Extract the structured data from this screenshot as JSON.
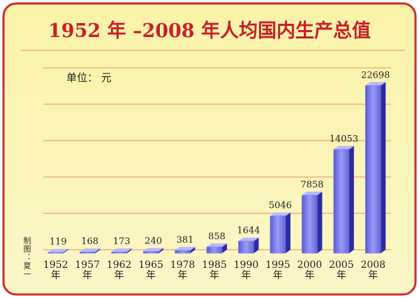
{
  "chart_data": {
    "type": "bar3d",
    "title": "1952 年 –2008 年人均国内生产总值",
    "unit_label": "单位： 元",
    "credit": "制图：夏一",
    "categories": [
      "1952\n年",
      "1957\n年",
      "1962\n年",
      "1965\n年",
      "1978\n年",
      "1985\n年",
      "1990\n年",
      "1995\n年",
      "2000\n年",
      "2005\n年",
      "2008\n年"
    ],
    "values": [
      119,
      168,
      173,
      240,
      381,
      858,
      1644,
      5046,
      7858,
      14053,
      22698
    ],
    "color": "#6f6fe6",
    "ylim": [
      0,
      25000
    ]
  }
}
